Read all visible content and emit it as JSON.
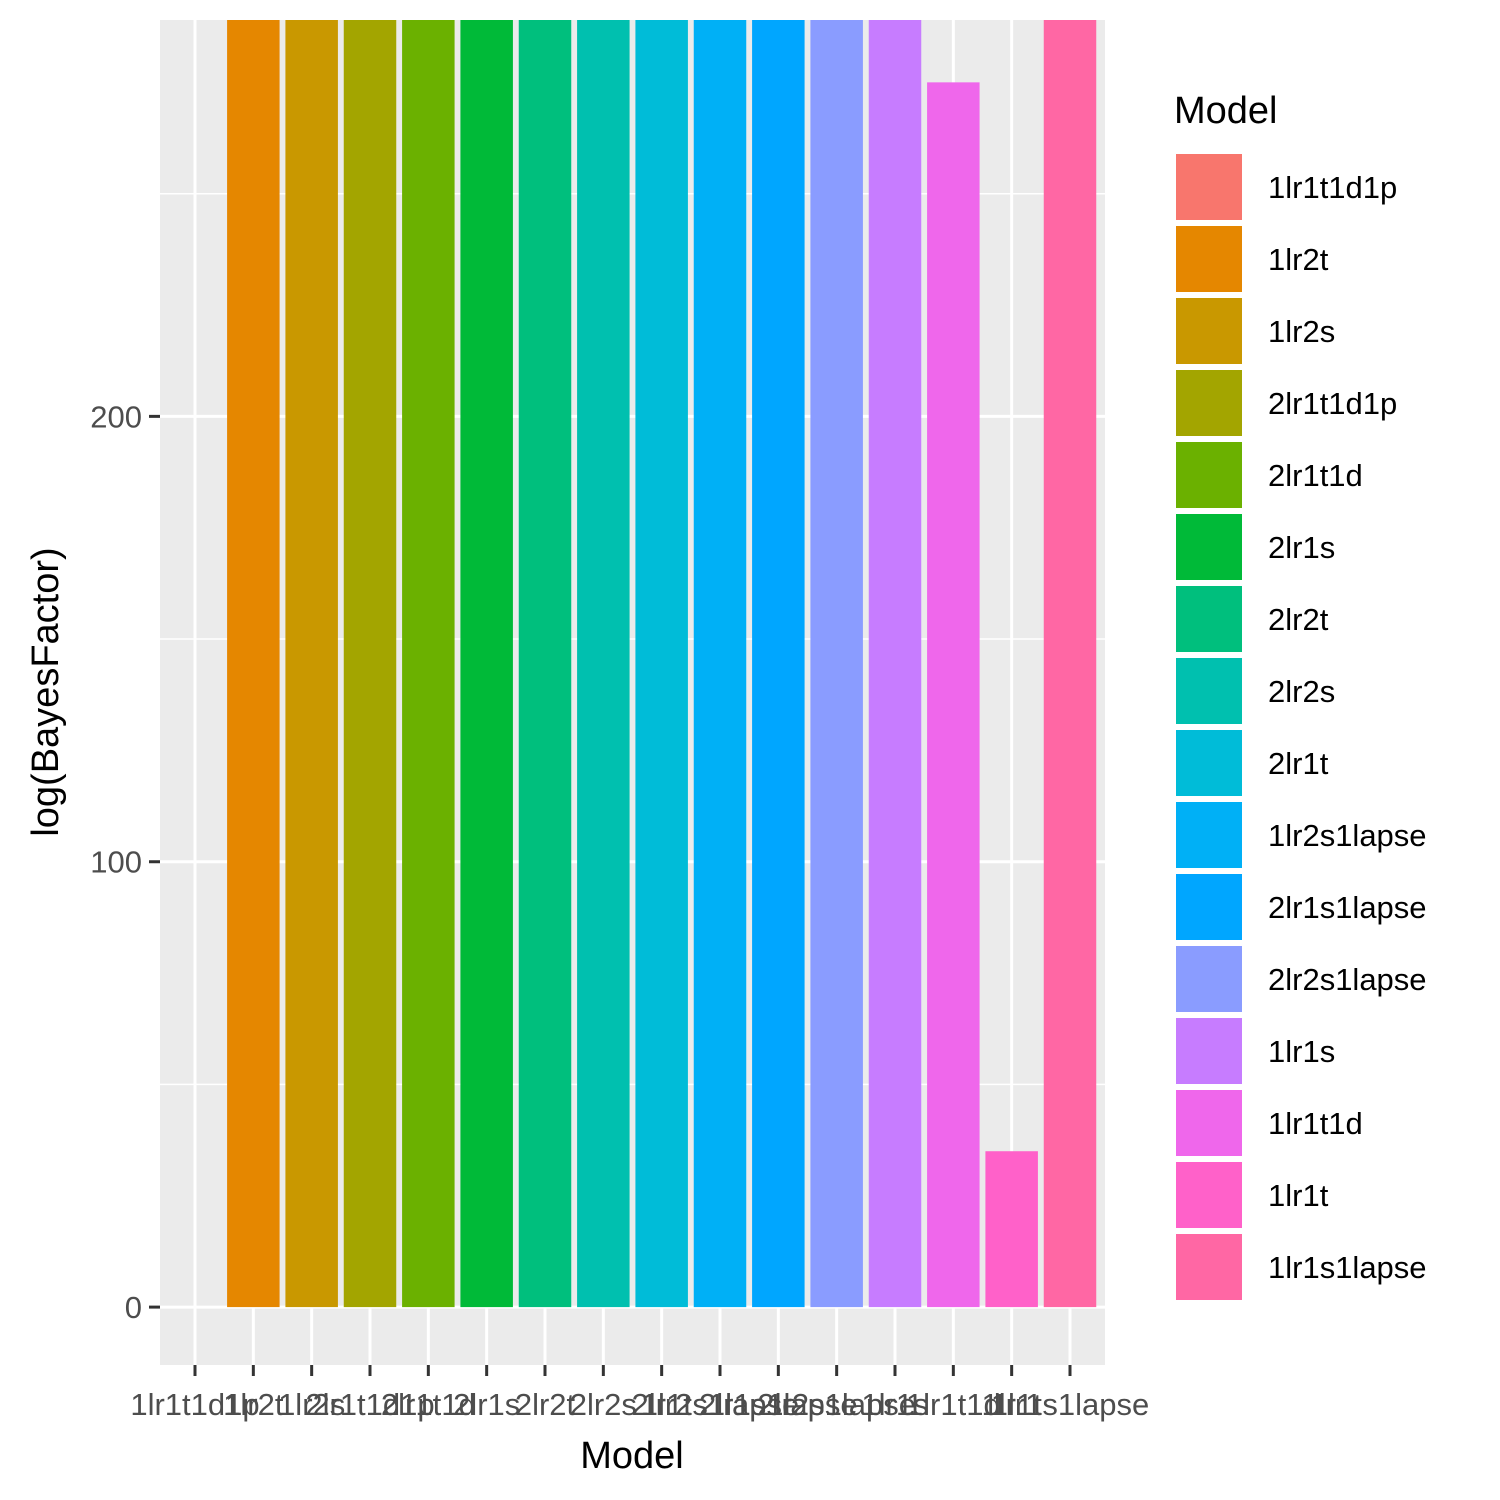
{
  "chart_data": {
    "type": "bar",
    "xlabel": "Model",
    "ylabel": "log(BayesFactor)",
    "categories": [
      "1lr1t1d1p",
      "1lr2t",
      "1lr2s",
      "2lr1t1d1p",
      "2lr1t1d",
      "2lr1s",
      "2lr2t",
      "2lr2s",
      "2lr1t",
      "1lr2s1lapse",
      "2lr1s1lapse",
      "2lr2s1lapse",
      "1lr1s",
      "1lr1t1d",
      "1lr1t",
      "1lr1s1lapse"
    ],
    "values": [
      0,
      289,
      289,
      289,
      289,
      289,
      289,
      289,
      289,
      289,
      289,
      289,
      289,
      275,
      35,
      289
    ],
    "colors": [
      "#F8766D",
      "#E58700",
      "#C99800",
      "#A3A500",
      "#6BB100",
      "#00BA38",
      "#00BF7D",
      "#00C0AF",
      "#00BCD8",
      "#00B0F6",
      "#00A6FF",
      "#8A9CFF",
      "#C77CFF",
      "#EF67EB",
      "#FF61C9",
      "#FF67A4"
    ],
    "y_ticks": [
      0,
      100,
      200
    ],
    "y_minor_ticks": [
      50,
      150,
      250
    ],
    "ylim": [
      -13,
      289
    ],
    "grid": true,
    "legend": {
      "title": "Model",
      "placement": "right",
      "entries": [
        "1lr1t1d1p",
        "1lr2t",
        "1lr2s",
        "2lr1t1d1p",
        "2lr1t1d",
        "2lr1s",
        "2lr2t",
        "2lr2s",
        "2lr1t",
        "1lr2s1lapse",
        "2lr1s1lapse",
        "2lr2s1lapse",
        "1lr1s",
        "1lr1t1d",
        "1lr1t",
        "1lr1s1lapse"
      ]
    }
  }
}
